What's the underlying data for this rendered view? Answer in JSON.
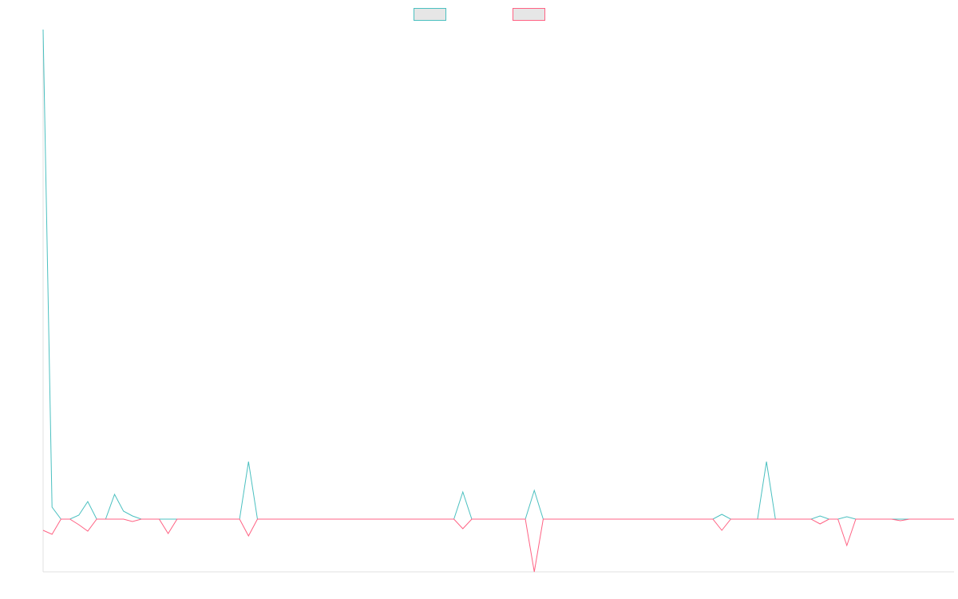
{
  "chart_data": {
    "type": "line",
    "series": [
      {
        "color": "#4bc0c0",
        "values": [
          613,
          15,
          0,
          0,
          5,
          22,
          0,
          0,
          31,
          10,
          4,
          0,
          0,
          0,
          0,
          0,
          0,
          0,
          0,
          0,
          0,
          0,
          0,
          72,
          0,
          0,
          0,
          0,
          0,
          0,
          0,
          0,
          0,
          0,
          0,
          0,
          0,
          0,
          0,
          0,
          0,
          0,
          0,
          0,
          0,
          0,
          0,
          34,
          0,
          0,
          0,
          0,
          0,
          0,
          0,
          36,
          0,
          0,
          0,
          0,
          0,
          0,
          0,
          0,
          0,
          0,
          0,
          0,
          0,
          0,
          0,
          0,
          0,
          0,
          0,
          0,
          6,
          0,
          0,
          0,
          0,
          72,
          0,
          0,
          0,
          0,
          0,
          4,
          0,
          0,
          3,
          0,
          0,
          0,
          0,
          0,
          0,
          0,
          0,
          0,
          0,
          0,
          0
        ]
      },
      {
        "color": "#ff6384",
        "values": [
          -14,
          -19,
          0,
          0,
          -7,
          -15,
          0,
          0,
          0,
          0,
          -3,
          0,
          0,
          0,
          -18,
          0,
          0,
          0,
          0,
          0,
          0,
          0,
          0,
          -21,
          0,
          0,
          0,
          0,
          0,
          0,
          0,
          0,
          0,
          0,
          0,
          0,
          0,
          0,
          0,
          0,
          0,
          0,
          0,
          0,
          0,
          0,
          0,
          -12,
          0,
          0,
          0,
          0,
          0,
          0,
          0,
          -66,
          0,
          0,
          0,
          0,
          0,
          0,
          0,
          0,
          0,
          0,
          0,
          0,
          0,
          0,
          0,
          0,
          0,
          0,
          0,
          0,
          -14,
          0,
          0,
          0,
          0,
          0,
          0,
          0,
          0,
          0,
          0,
          -6,
          0,
          0,
          -33,
          0,
          0,
          0,
          0,
          0,
          -2,
          0,
          0,
          0,
          0,
          0,
          0
        ]
      }
    ],
    "ylim": [
      -66,
      613
    ]
  }
}
